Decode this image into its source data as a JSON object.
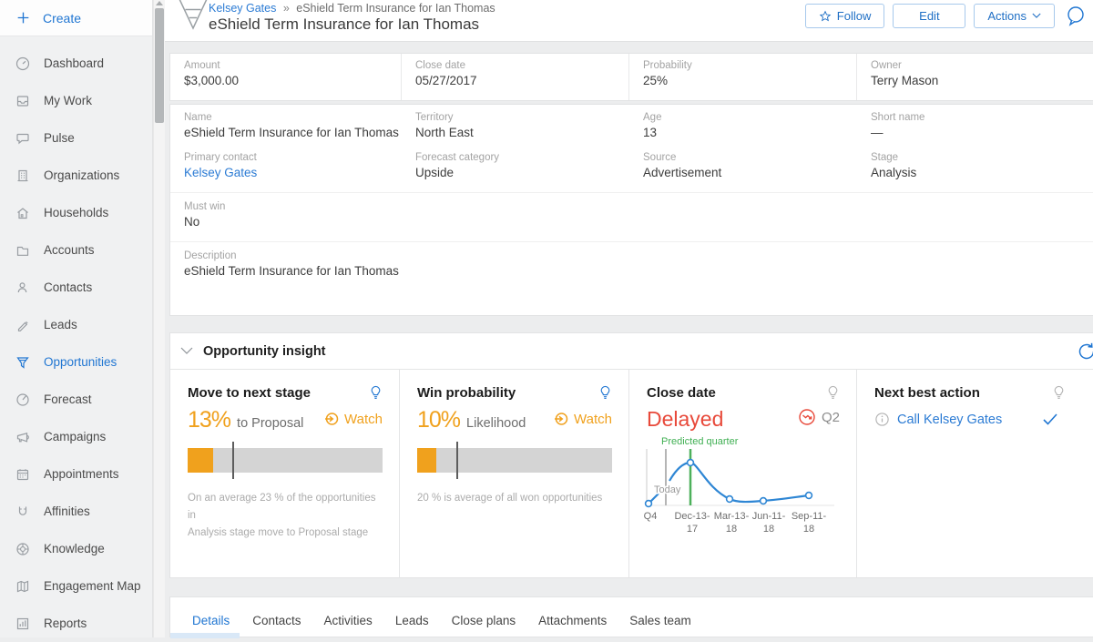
{
  "colors": {
    "accent_blue": "#2076d2",
    "link_blue": "#2b7bd4",
    "orange": "#f0a11d",
    "red": "#e8493a",
    "green": "#43b153",
    "bar_gray": "#d4d4d4"
  },
  "sidebar": {
    "create_label": "Create",
    "items": [
      {
        "label": "Dashboard"
      },
      {
        "label": "My Work"
      },
      {
        "label": "Pulse"
      },
      {
        "label": "Organizations"
      },
      {
        "label": "Households"
      },
      {
        "label": "Accounts"
      },
      {
        "label": "Contacts"
      },
      {
        "label": "Leads"
      },
      {
        "label": "Opportunities",
        "active": true
      },
      {
        "label": "Forecast"
      },
      {
        "label": "Campaigns"
      },
      {
        "label": "Appointments"
      },
      {
        "label": "Affinities"
      },
      {
        "label": "Knowledge"
      },
      {
        "label": "Engagement Map"
      },
      {
        "label": "Reports"
      }
    ]
  },
  "header": {
    "breadcrumb_parent": "Kelsey Gates",
    "breadcrumb_separator": "»",
    "breadcrumb_current": "eShield Term Insurance for Ian Thomas",
    "title": "eShield Term Insurance for Ian Thomas",
    "follow_label": "Follow",
    "edit_label": "Edit",
    "actions_label": "Actions"
  },
  "details": {
    "row1": [
      {
        "label": "Amount",
        "value": "$3,000.00"
      },
      {
        "label": "Close date",
        "value": "05/27/2017"
      },
      {
        "label": "Probability",
        "value": "25%"
      },
      {
        "label": "Owner",
        "value": "Terry Mason"
      }
    ],
    "row2": [
      {
        "label": "Name",
        "value": "eShield Term Insurance for Ian Thomas"
      },
      {
        "label": "Territory",
        "value": "North East"
      },
      {
        "label": "Age",
        "value": "13"
      },
      {
        "label": "Short name",
        "value": "—"
      }
    ],
    "row3": [
      {
        "label": "Primary contact",
        "value": "Kelsey Gates"
      },
      {
        "label": "Forecast category",
        "value": "Upside"
      },
      {
        "label": "Source",
        "value": "Advertisement"
      },
      {
        "label": "Stage",
        "value": "Analysis"
      }
    ],
    "must_win": {
      "label": "Must win",
      "value": "No"
    },
    "description": {
      "label": "Description",
      "value": "eShield Term Insurance for Ian Thomas"
    }
  },
  "insight": {
    "section_title": "Opportunity insight",
    "move_stage": {
      "title": "Move to next stage",
      "percent": "13%",
      "suffix": "to  Proposal",
      "watch_label": "Watch",
      "fill_pct": 13,
      "marker_pct": 23,
      "caption_line1": "On an average 23 % of the opportunities in",
      "caption_line2": "Analysis   stage move to Proposal  stage"
    },
    "win_prob": {
      "title": "Win probability",
      "percent": "10%",
      "suffix": "Likelihood",
      "watch_label": "Watch",
      "fill_pct": 10,
      "marker_pct": 20,
      "caption_line1": "20 % is  average of all won opportunities"
    },
    "close_date": {
      "title": "Close date",
      "status": "Delayed",
      "quarter": "Q2",
      "annotation_predicted": "Predicted quarter",
      "annotation_today": "Today",
      "x0a": "Q4",
      "x0b": "",
      "x1a": "Dec-13-",
      "x1b": "17",
      "x2a": "Mar-13-",
      "x2b": "18",
      "x3a": "Jun-11-",
      "x3b": "18",
      "x4a": "Sep-11-",
      "x4b": "18"
    },
    "next_action": {
      "title": "Next best action",
      "action_label": "Call Kelsey Gates"
    }
  },
  "tabs": [
    {
      "label": "Details",
      "active": true
    },
    {
      "label": "Contacts"
    },
    {
      "label": "Activities"
    },
    {
      "label": "Leads"
    },
    {
      "label": "Close plans"
    },
    {
      "label": "Attachments"
    },
    {
      "label": "Sales team"
    }
  ],
  "chart_data": {
    "type": "line",
    "title": "Close date prediction trend",
    "x": [
      "Q4",
      "Dec-13-17",
      "Mar-13-18",
      "Jun-11-18",
      "Sep-11-18"
    ],
    "values": [
      2,
      72,
      10,
      8,
      17
    ],
    "ylim": [
      0,
      100
    ],
    "annotations": [
      {
        "label": "Today",
        "position": "between Q4 and Dec-13-17",
        "color": "#b5b5b5"
      },
      {
        "label": "Predicted quarter",
        "position": "Dec-13-17",
        "color": "#43b153"
      }
    ],
    "legend": "none",
    "grid": false,
    "series_color": "#2e86d4"
  }
}
